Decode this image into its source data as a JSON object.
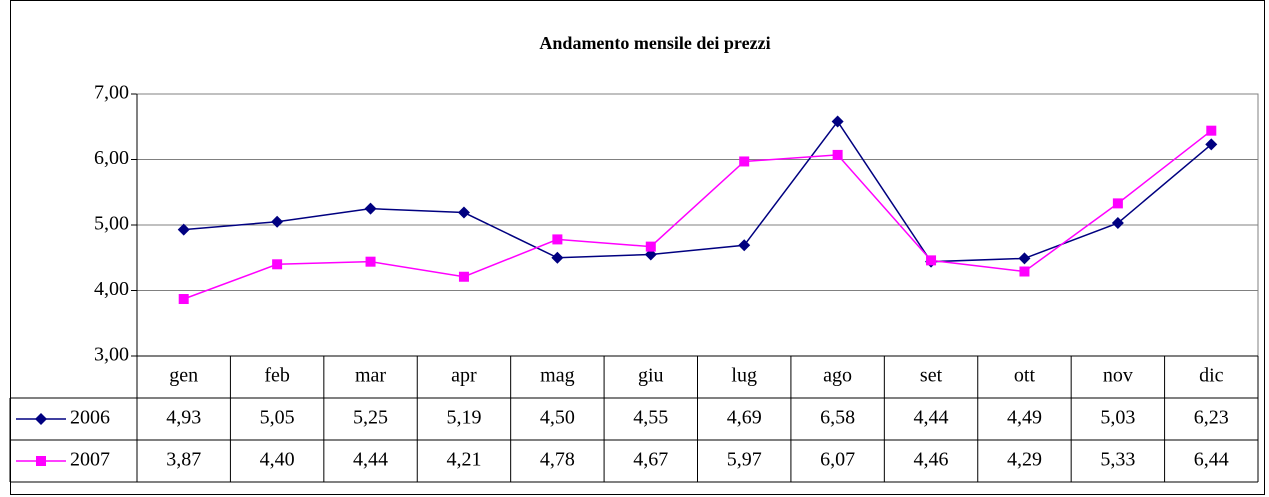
{
  "chart_data": {
    "type": "line",
    "title": "Andamento mensile dei prezzi",
    "categories": [
      "gen",
      "feb",
      "mar",
      "apr",
      "mag",
      "giu",
      "lug",
      "ago",
      "set",
      "ott",
      "nov",
      "dic"
    ],
    "series": [
      {
        "name": "2006",
        "color": "#000080",
        "marker": "diamond",
        "values": [
          4.93,
          5.05,
          5.25,
          5.19,
          4.5,
          4.55,
          4.69,
          6.58,
          4.44,
          4.49,
          5.03,
          6.23
        ],
        "value_labels": [
          "4,93",
          "5,05",
          "5,25",
          "5,19",
          "4,50",
          "4,55",
          "4,69",
          "6,58",
          "4,44",
          "4,49",
          "5,03",
          "6,23"
        ]
      },
      {
        "name": "2007",
        "color": "#ff00ff",
        "marker": "square",
        "values": [
          3.87,
          4.4,
          4.44,
          4.21,
          4.78,
          4.67,
          5.97,
          6.07,
          4.46,
          4.29,
          5.33,
          6.44
        ],
        "value_labels": [
          "3,87",
          "4,40",
          "4,44",
          "4,21",
          "4,78",
          "4,67",
          "5,97",
          "6,07",
          "4,46",
          "4,29",
          "5,33",
          "6,44"
        ]
      }
    ],
    "ylim": [
      3,
      7
    ],
    "yticks": [
      {
        "value": 3,
        "label": "3,00"
      },
      {
        "value": 4,
        "label": "4,00"
      },
      {
        "value": 5,
        "label": "5,00"
      },
      {
        "value": 6,
        "label": "6,00"
      },
      {
        "value": 7,
        "label": "7,00"
      }
    ],
    "grid": true,
    "data_table": true
  }
}
